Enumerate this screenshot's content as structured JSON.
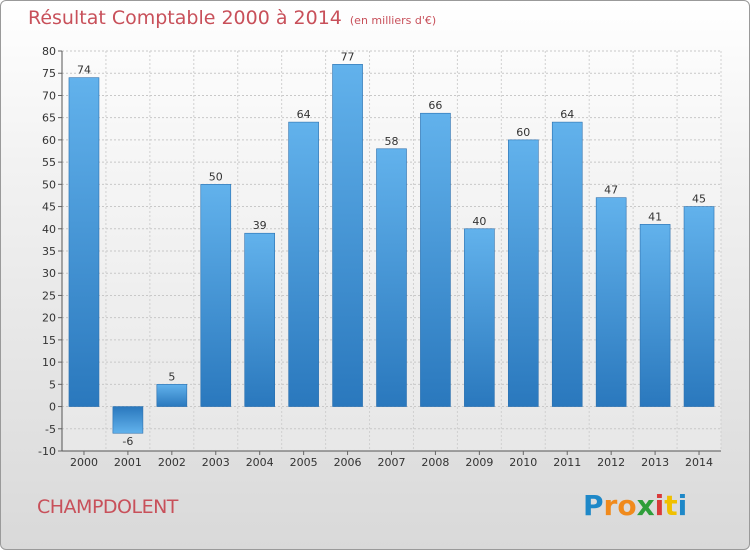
{
  "chart_data": {
    "type": "bar",
    "title": "Résultat Comptable 2000 à 2014",
    "subtitle": "(en milliers d'€)",
    "categories": [
      "2000",
      "2001",
      "2002",
      "2003",
      "2004",
      "2005",
      "2006",
      "2007",
      "2008",
      "2009",
      "2010",
      "2011",
      "2012",
      "2013",
      "2014"
    ],
    "values": [
      74,
      -6,
      5,
      50,
      39,
      64,
      77,
      58,
      66,
      40,
      60,
      64,
      47,
      41,
      45
    ],
    "ylim": [
      -10,
      80
    ],
    "yticks": [
      -10,
      -5,
      0,
      5,
      10,
      15,
      20,
      25,
      30,
      35,
      40,
      45,
      50,
      55,
      60,
      65,
      70,
      75,
      80
    ],
    "xlabel": "",
    "ylabel": "",
    "grid": true,
    "bar_color": "#3a8fd6"
  },
  "footer": {
    "town": "CHAMPDOLENT",
    "logo_letters": [
      "P",
      "r",
      "o",
      "x",
      "i",
      "t",
      "i"
    ],
    "logo_colors": [
      "#1e88c8",
      "#f08a1c",
      "#f08a1c",
      "#2e9e3a",
      "#d93a3a",
      "#f0c000",
      "#1e88c8"
    ]
  }
}
